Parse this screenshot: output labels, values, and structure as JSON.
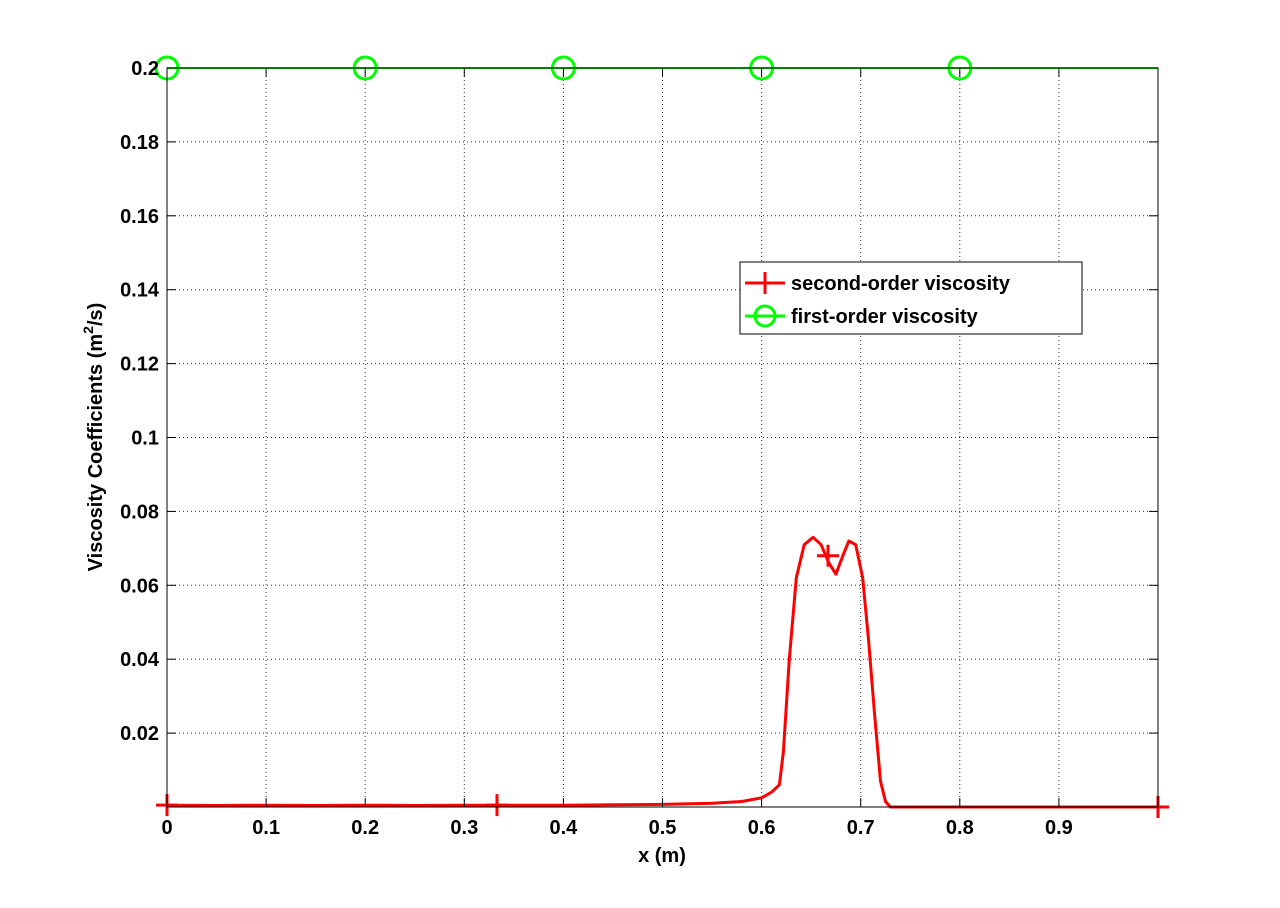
{
  "chart_data": {
    "type": "line",
    "xlabel": "x (m)",
    "ylabel_main": "Viscosity Coefficients (m",
    "ylabel_sup": "2",
    "ylabel_tail": "/s)",
    "xlim": [
      0,
      1
    ],
    "ylim": [
      0,
      0.2
    ],
    "grid": true,
    "legend_position": "center-right",
    "x_ticks": [
      0,
      0.1,
      0.2,
      0.3,
      0.4,
      0.5,
      0.6,
      0.7,
      0.8,
      0.9
    ],
    "x_tick_labels": [
      "0",
      "0.1",
      "0.2",
      "0.3",
      "0.4",
      "0.5",
      "0.6",
      "0.7",
      "0.8",
      "0.9"
    ],
    "y_ticks": [
      0.02,
      0.04,
      0.06,
      0.08,
      0.1,
      0.12,
      0.14,
      0.16,
      0.18,
      0.2
    ],
    "y_tick_labels": [
      "0.02",
      "0.04",
      "0.06",
      "0.08",
      "0.1",
      "0.12",
      "0.14",
      "0.16",
      "0.18",
      "0.2"
    ],
    "series": [
      {
        "name": "second-order viscosity",
        "color": "#ff0000",
        "marker": "plus",
        "x": [
          0,
          0.05,
          0.1,
          0.15,
          0.2,
          0.25,
          0.3,
          0.35,
          0.4,
          0.45,
          0.5,
          0.55,
          0.58,
          0.6,
          0.61,
          0.618,
          0.622,
          0.628,
          0.635,
          0.643,
          0.652,
          0.66,
          0.668,
          0.675,
          0.682,
          0.688,
          0.695,
          0.702,
          0.708,
          0.714,
          0.72,
          0.725,
          0.73,
          0.8,
          0.9,
          1.0
        ],
        "y": [
          0.0005,
          0.0004,
          0.0005,
          0.0004,
          0.0005,
          0.0004,
          0.0005,
          0.0005,
          0.0005,
          0.0006,
          0.0007,
          0.001,
          0.0015,
          0.0025,
          0.004,
          0.006,
          0.015,
          0.04,
          0.062,
          0.071,
          0.073,
          0.071,
          0.066,
          0.063,
          0.068,
          0.072,
          0.071,
          0.062,
          0.045,
          0.025,
          0.007,
          0.0015,
          0.0,
          0.0,
          0.0,
          0.0
        ],
        "marker_x": [
          0,
          0.333,
          0.667,
          1.0
        ],
        "marker_y": [
          0.0005,
          0.0005,
          0.068,
          0.0
        ]
      },
      {
        "name": "first-order viscosity",
        "color": "#00ff00",
        "marker": "circle",
        "x": [
          0,
          1.0
        ],
        "y": [
          0.2,
          0.2
        ],
        "marker_x": [
          0,
          0.2,
          0.4,
          0.6,
          0.8
        ],
        "marker_y": [
          0.2,
          0.2,
          0.2,
          0.2,
          0.2
        ]
      }
    ]
  }
}
